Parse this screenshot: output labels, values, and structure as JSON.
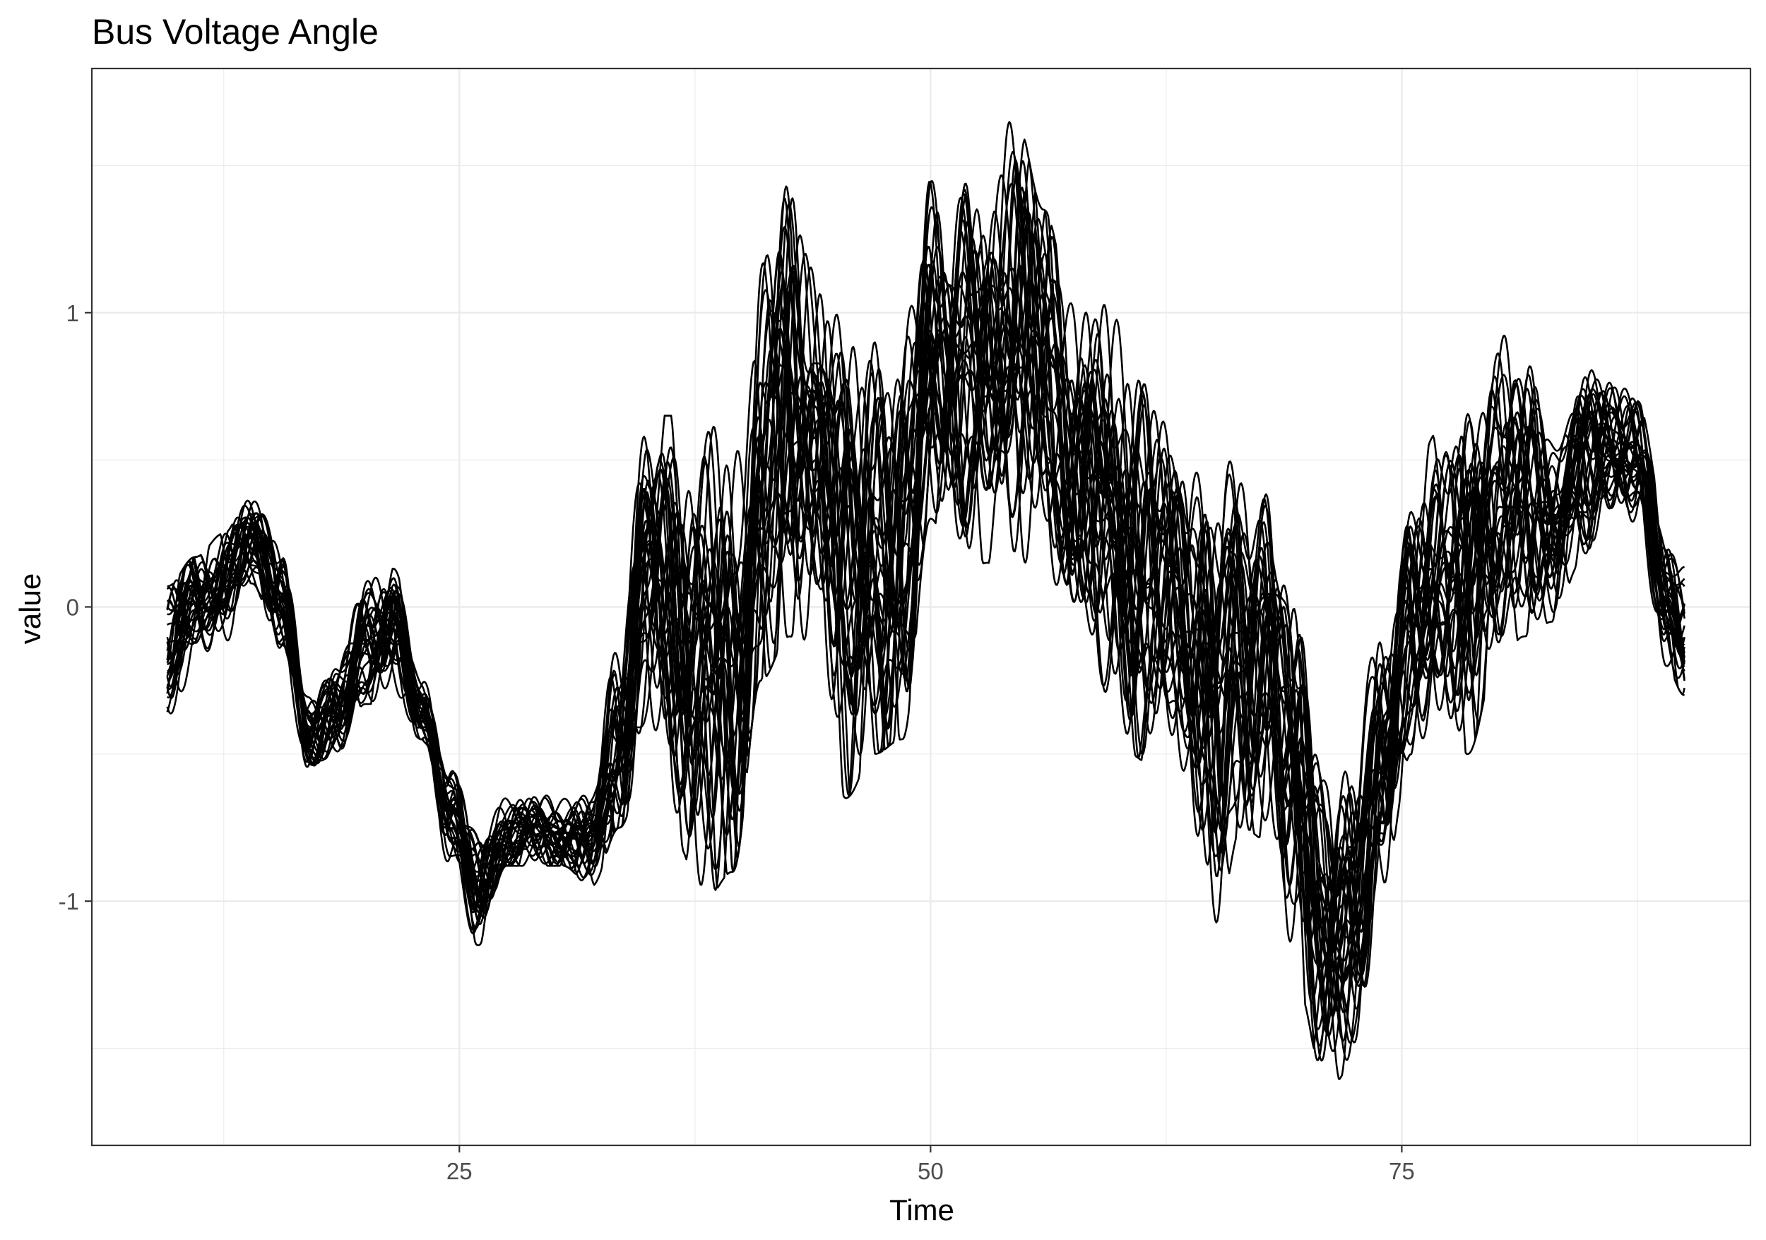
{
  "chart_data": {
    "type": "line",
    "title": "Bus Voltage Angle",
    "xlabel": "Time",
    "ylabel": "value",
    "xlim": [
      5.5,
      93.5
    ],
    "ylim": [
      -1.83,
      1.83
    ],
    "x_ticks": [
      25,
      50,
      75
    ],
    "x_tick_labels": [
      "25",
      "50",
      "75"
    ],
    "y_ticks": [
      -1,
      0,
      1
    ],
    "y_tick_labels": [
      "-1",
      "0",
      "1"
    ],
    "grid": true,
    "legend": "none",
    "series_count": 30,
    "line_color": "#000000",
    "x_start": 9.5,
    "x_end": 90,
    "envelope": {
      "x": [
        9.5,
        11,
        12.5,
        14,
        15.5,
        17,
        18.5,
        20,
        21.5,
        23,
        24.5,
        26,
        27.5,
        29,
        30.5,
        32,
        33.5,
        35,
        36.5,
        38,
        39.5,
        41,
        42.5,
        44,
        45.5,
        47,
        48.5,
        50,
        51.5,
        53,
        54.5,
        56,
        57.5,
        59,
        60.5,
        62,
        63.5,
        65,
        66.5,
        68,
        69.5,
        71,
        72.5,
        74,
        75.5,
        77,
        78.5,
        80,
        81.5,
        83,
        84.5,
        86,
        87.5,
        89,
        90
      ],
      "center": [
        -0.15,
        0.0,
        0.1,
        0.22,
        0.05,
        -0.45,
        -0.35,
        -0.15,
        -0.05,
        -0.35,
        -0.7,
        -0.95,
        -0.8,
        -0.75,
        -0.78,
        -0.8,
        -0.45,
        0.1,
        -0.05,
        -0.2,
        -0.3,
        0.4,
        0.65,
        0.55,
        0.05,
        0.2,
        0.15,
        0.85,
        0.8,
        0.75,
        0.95,
        0.8,
        0.5,
        0.35,
        0.2,
        0.05,
        -0.05,
        -0.3,
        -0.2,
        -0.15,
        -0.65,
        -1.1,
        -1.05,
        -0.5,
        -0.1,
        0.1,
        0.05,
        0.4,
        0.35,
        0.3,
        0.45,
        0.55,
        0.5,
        0.05,
        -0.1
      ],
      "low": [
        -0.42,
        -0.28,
        -0.18,
        0.08,
        -0.15,
        -0.62,
        -0.5,
        -0.33,
        -0.33,
        -0.45,
        -0.9,
        -1.15,
        -0.88,
        -0.88,
        -0.88,
        -0.95,
        -0.75,
        -0.5,
        -0.8,
        -1.0,
        -0.9,
        -0.25,
        -0.1,
        -0.15,
        -0.65,
        -0.5,
        -0.45,
        0.3,
        0.1,
        0.15,
        0.1,
        0.0,
        -0.2,
        -0.35,
        -0.5,
        -0.55,
        -0.6,
        -1.15,
        -0.75,
        -0.8,
        -1.3,
        -1.65,
        -1.55,
        -0.95,
        -0.5,
        -0.45,
        -0.5,
        -0.2,
        -0.1,
        -0.05,
        0.15,
        0.3,
        0.2,
        -0.2,
        -0.3
      ],
      "high": [
        0.07,
        0.17,
        0.25,
        0.4,
        0.3,
        -0.3,
        -0.15,
        0.17,
        0.13,
        -0.22,
        -0.55,
        -0.7,
        -0.6,
        -0.62,
        -0.62,
        -0.6,
        0.1,
        0.65,
        0.65,
        0.7,
        0.8,
        1.5,
        1.55,
        1.3,
        1.0,
        1.1,
        1.2,
        1.67,
        1.45,
        1.5,
        1.67,
        1.35,
        1.05,
        1.1,
        0.95,
        0.75,
        0.6,
        0.7,
        0.6,
        0.5,
        0.3,
        -0.6,
        -0.5,
        0.15,
        0.45,
        0.6,
        0.95,
        0.95,
        0.9,
        0.75,
        0.85,
        0.85,
        0.7,
        0.3,
        0.2
      ]
    }
  }
}
